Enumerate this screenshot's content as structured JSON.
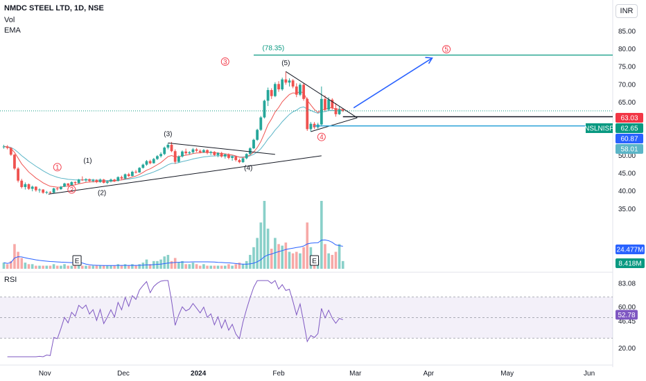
{
  "header": {
    "symbol_title": "NMDC STEEL LTD, 1D, NSE",
    "indicator_vol": "Vol",
    "indicator_ema": "EMA",
    "currency": "INR",
    "rsi_label": "RSI"
  },
  "colors": {
    "up": "#26a69a",
    "down": "#ef5350",
    "vol_up": "#89d0c9",
    "vol_down": "#f7a9a7",
    "ema_fast": "#ef5350",
    "ema_slow": "#5bb5c7",
    "vol_ma": "#2962ff",
    "rsi_line": "#7e57c2",
    "target_line": "#089981",
    "projection_arrow": "#2962ff",
    "wave_red": "#f23645"
  },
  "chart_data": {
    "type": "candlestick",
    "price_axis": {
      "ticks": [
        "85.00",
        "80.00",
        "75.00",
        "70.00",
        "65.00",
        "60.00",
        "55.00",
        "50.00",
        "45.00",
        "40.00",
        "35.00"
      ],
      "range": [
        29.5,
        88
      ]
    },
    "time_axis": {
      "labels": [
        "Nov",
        "Dec",
        "2024",
        "Feb",
        "Mar",
        "Apr",
        "May",
        "Jun"
      ]
    },
    "price_tags": [
      {
        "value": "63.03",
        "color": "#f23645"
      },
      {
        "name": "NSLNISP",
        "value": "62.65",
        "color": "#089981"
      },
      {
        "value": "60.87",
        "color": "#2962ff"
      },
      {
        "value": "58.01",
        "color": "#5bb5c7"
      }
    ],
    "volume_tags": [
      {
        "value": "24.477M",
        "color": "#2962ff"
      },
      {
        "value": "8.418M",
        "color": "#089981"
      }
    ],
    "candles": [
      [
        52.5,
        53.1,
        52.0,
        52.6
      ],
      [
        52.6,
        53.0,
        51.8,
        52.2
      ],
      [
        52.2,
        52.4,
        50.0,
        50.3
      ],
      [
        50.3,
        50.5,
        46.0,
        46.4
      ],
      [
        46.4,
        46.8,
        42.5,
        43.0
      ],
      [
        43.0,
        43.5,
        40.8,
        41.2
      ],
      [
        41.2,
        42.5,
        40.5,
        42.0
      ],
      [
        42.0,
        42.2,
        40.4,
        40.7
      ],
      [
        40.7,
        41.6,
        40.0,
        41.3
      ],
      [
        41.3,
        41.4,
        39.9,
        40.3
      ],
      [
        40.3,
        40.8,
        39.6,
        40.5
      ],
      [
        40.5,
        40.6,
        39.3,
        39.6
      ],
      [
        39.6,
        40.1,
        39.2,
        39.8
      ],
      [
        39.8,
        40.0,
        39.3,
        39.6
      ],
      [
        39.6,
        41.0,
        39.5,
        40.8
      ],
      [
        40.8,
        41.2,
        40.2,
        40.6
      ],
      [
        40.6,
        41.5,
        40.4,
        41.3
      ],
      [
        41.3,
        42.4,
        41.2,
        42.2
      ],
      [
        42.2,
        42.3,
        41.4,
        41.7
      ],
      [
        41.7,
        42.8,
        41.5,
        42.6
      ],
      [
        42.6,
        42.8,
        41.8,
        42.3
      ],
      [
        42.3,
        43.5,
        42.2,
        43.3
      ],
      [
        43.3,
        44.2,
        42.9,
        43.1
      ],
      [
        43.1,
        43.7,
        42.6,
        43.4
      ],
      [
        43.4,
        43.6,
        42.6,
        42.9
      ],
      [
        42.9,
        43.5,
        42.5,
        43.2
      ],
      [
        43.2,
        43.4,
        42.3,
        42.6
      ],
      [
        42.6,
        43.6,
        42.4,
        43.3
      ],
      [
        43.3,
        43.5,
        42.2,
        42.4
      ],
      [
        42.4,
        43.0,
        42.0,
        42.8
      ],
      [
        42.8,
        43.6,
        42.5,
        43.3
      ],
      [
        43.3,
        43.5,
        42.6,
        42.9
      ],
      [
        42.9,
        44.2,
        42.8,
        44.0
      ],
      [
        44.0,
        44.4,
        43.3,
        43.6
      ],
      [
        43.6,
        45.0,
        43.4,
        44.8
      ],
      [
        44.8,
        45.2,
        44.0,
        44.3
      ],
      [
        44.3,
        45.8,
        44.2,
        45.5
      ],
      [
        45.5,
        46.0,
        45.0,
        45.3
      ],
      [
        45.3,
        46.8,
        45.2,
        46.6
      ],
      [
        46.6,
        47.8,
        46.4,
        47.5
      ],
      [
        47.5,
        48.8,
        47.2,
        48.5
      ],
      [
        48.5,
        48.9,
        47.6,
        47.9
      ],
      [
        47.9,
        49.4,
        47.8,
        49.1
      ],
      [
        49.1,
        50.2,
        48.8,
        49.9
      ],
      [
        49.9,
        51.0,
        49.5,
        50.5
      ],
      [
        50.5,
        52.6,
        50.2,
        52.3
      ],
      [
        52.3,
        53.5,
        51.8,
        53.1
      ],
      [
        53.1,
        53.9,
        51.0,
        51.3
      ],
      [
        51.3,
        51.8,
        47.7,
        48.3
      ],
      [
        48.3,
        50.1,
        48.0,
        49.8
      ],
      [
        49.8,
        51.5,
        49.5,
        51.2
      ],
      [
        51.2,
        52.0,
        50.2,
        50.7
      ],
      [
        50.7,
        51.3,
        50.3,
        51.0
      ],
      [
        51.0,
        52.2,
        50.6,
        51.8
      ],
      [
        51.8,
        52.2,
        51.0,
        51.4
      ],
      [
        51.4,
        51.8,
        50.7,
        51.0
      ],
      [
        51.0,
        51.9,
        50.8,
        51.6
      ],
      [
        51.6,
        51.8,
        50.4,
        50.8
      ],
      [
        50.8,
        51.4,
        50.2,
        51.1
      ],
      [
        51.1,
        51.3,
        49.9,
        50.2
      ],
      [
        50.2,
        51.0,
        49.6,
        50.8
      ],
      [
        50.8,
        51.1,
        49.5,
        49.8
      ],
      [
        49.8,
        50.6,
        49.2,
        50.4
      ],
      [
        50.4,
        50.7,
        49.0,
        49.4
      ],
      [
        49.4,
        50.1,
        48.6,
        49.8
      ],
      [
        49.8,
        50.0,
        48.4,
        48.8
      ],
      [
        48.8,
        49.2,
        47.9,
        48.2
      ],
      [
        48.2,
        49.5,
        48.0,
        49.3
      ],
      [
        49.3,
        50.7,
        49.0,
        50.5
      ],
      [
        50.5,
        52.4,
        50.3,
        52.1
      ],
      [
        52.1,
        54.8,
        51.9,
        54.5
      ],
      [
        54.5,
        57.6,
        54.2,
        57.3
      ],
      [
        57.3,
        61.2,
        57.0,
        60.8
      ],
      [
        60.8,
        65.8,
        60.5,
        65.5
      ],
      [
        65.5,
        69.2,
        64.0,
        68.5
      ],
      [
        68.5,
        69.0,
        66.0,
        66.8
      ],
      [
        66.8,
        70.7,
        66.5,
        70.2
      ],
      [
        70.2,
        71.0,
        68.0,
        68.7
      ],
      [
        68.7,
        72.0,
        68.3,
        71.5
      ],
      [
        71.5,
        73.7,
        70.0,
        70.6
      ],
      [
        70.6,
        71.8,
        69.5,
        71.2
      ],
      [
        71.2,
        71.6,
        69.0,
        69.5
      ],
      [
        69.5,
        70.4,
        66.5,
        67.2
      ],
      [
        67.2,
        70.5,
        66.8,
        70.0
      ],
      [
        70.0,
        70.5,
        65.5,
        66.0
      ],
      [
        66.0,
        66.4,
        57.0,
        57.5
      ],
      [
        57.5,
        59.5,
        56.8,
        59.0
      ],
      [
        59.0,
        59.5,
        57.5,
        58.0
      ],
      [
        58.0,
        59.3,
        57.6,
        58.8
      ],
      [
        58.8,
        69.5,
        58.5,
        66.0
      ],
      [
        66.0,
        67.0,
        62.5,
        63.0
      ],
      [
        63.0,
        66.5,
        62.8,
        65.8
      ],
      [
        65.8,
        66.2,
        63.0,
        63.4
      ],
      [
        63.4,
        64.8,
        61.0,
        61.7
      ],
      [
        61.7,
        63.8,
        61.5,
        63.0
      ],
      [
        63.0,
        63.4,
        62.3,
        62.65
      ]
    ],
    "volume_scale_max": 44,
    "volume": [
      {
        "v": 4,
        "u": true
      },
      {
        "v": 3,
        "u": false
      },
      {
        "v": 5,
        "u": false
      },
      {
        "v": 16,
        "u": false
      },
      {
        "v": 11,
        "u": false
      },
      {
        "v": 7,
        "u": false
      },
      {
        "v": 4,
        "u": true
      },
      {
        "v": 3,
        "u": false
      },
      {
        "v": 3,
        "u": true
      },
      {
        "v": 2,
        "u": false
      },
      {
        "v": 2,
        "u": true
      },
      {
        "v": 2,
        "u": false
      },
      {
        "v": 2,
        "u": true
      },
      {
        "v": 2,
        "u": false
      },
      {
        "v": 3,
        "u": true
      },
      {
        "v": 2,
        "u": false
      },
      {
        "v": 2,
        "u": true
      },
      {
        "v": 3,
        "u": true
      },
      {
        "v": 2,
        "u": false
      },
      {
        "v": 2,
        "u": true
      },
      {
        "v": 2,
        "u": false
      },
      {
        "v": 3,
        "u": true
      },
      {
        "v": 2,
        "u": false
      },
      {
        "v": 2,
        "u": true
      },
      {
        "v": 2,
        "u": false
      },
      {
        "v": 2,
        "u": true
      },
      {
        "v": 2,
        "u": false
      },
      {
        "v": 2,
        "u": true
      },
      {
        "v": 2,
        "u": false
      },
      {
        "v": 2,
        "u": true
      },
      {
        "v": 2,
        "u": true
      },
      {
        "v": 2,
        "u": false
      },
      {
        "v": 3,
        "u": true
      },
      {
        "v": 2,
        "u": false
      },
      {
        "v": 3,
        "u": true
      },
      {
        "v": 2,
        "u": false
      },
      {
        "v": 3,
        "u": true
      },
      {
        "v": 2,
        "u": false
      },
      {
        "v": 3,
        "u": true
      },
      {
        "v": 4,
        "u": true
      },
      {
        "v": 6,
        "u": true
      },
      {
        "v": 3,
        "u": false
      },
      {
        "v": 5,
        "u": true
      },
      {
        "v": 5,
        "u": true
      },
      {
        "v": 6,
        "u": true
      },
      {
        "v": 8,
        "u": true
      },
      {
        "v": 9,
        "u": true
      },
      {
        "v": 5,
        "u": false
      },
      {
        "v": 7,
        "u": false
      },
      {
        "v": 4,
        "u": true
      },
      {
        "v": 5,
        "u": true
      },
      {
        "v": 3,
        "u": false
      },
      {
        "v": 3,
        "u": true
      },
      {
        "v": 4,
        "u": true
      },
      {
        "v": 3,
        "u": false
      },
      {
        "v": 2,
        "u": false
      },
      {
        "v": 3,
        "u": true
      },
      {
        "v": 2,
        "u": false
      },
      {
        "v": 2,
        "u": true
      },
      {
        "v": 2,
        "u": false
      },
      {
        "v": 2,
        "u": true
      },
      {
        "v": 2,
        "u": false
      },
      {
        "v": 2,
        "u": true
      },
      {
        "v": 3,
        "u": false
      },
      {
        "v": 2,
        "u": true
      },
      {
        "v": 3,
        "u": false
      },
      {
        "v": 4,
        "u": false
      },
      {
        "v": 3,
        "u": true
      },
      {
        "v": 5,
        "u": true
      },
      {
        "v": 9,
        "u": true
      },
      {
        "v": 14,
        "u": true
      },
      {
        "v": 20,
        "u": true
      },
      {
        "v": 30,
        "u": true
      },
      {
        "v": 44,
        "u": true
      },
      {
        "v": 26,
        "u": true
      },
      {
        "v": 13,
        "u": false
      },
      {
        "v": 20,
        "u": true
      },
      {
        "v": 16,
        "u": false
      },
      {
        "v": 15,
        "u": true
      },
      {
        "v": 17,
        "u": false
      },
      {
        "v": 11,
        "u": true
      },
      {
        "v": 10,
        "u": false
      },
      {
        "v": 11,
        "u": false
      },
      {
        "v": 10,
        "u": true
      },
      {
        "v": 14,
        "u": false
      },
      {
        "v": 30,
        "u": false
      },
      {
        "v": 14,
        "u": true
      },
      {
        "v": 7,
        "u": false
      },
      {
        "v": 6,
        "u": true
      },
      {
        "v": 44,
        "u": true
      },
      {
        "v": 16,
        "u": false
      },
      {
        "v": 10,
        "u": true
      },
      {
        "v": 9,
        "u": false
      },
      {
        "v": 11,
        "u": false
      },
      {
        "v": 16,
        "u": true
      },
      {
        "v": 5,
        "u": true
      }
    ],
    "rsi": {
      "ticks": [
        "83.08",
        "60.00",
        "46.45",
        "20.00"
      ],
      "current": "52.78",
      "range": [
        12,
        86
      ],
      "overbought": 70,
      "oversold": 30
    },
    "annotations": {
      "target_label": "(78.35)",
      "target_value": 78.35,
      "waves_red": [
        "1",
        "2",
        "3",
        "4",
        "5"
      ],
      "waves_black": [
        "(1)",
        "(2)",
        "(3)",
        "(4)",
        "(5)"
      ],
      "earnings_marker": "E"
    }
  }
}
